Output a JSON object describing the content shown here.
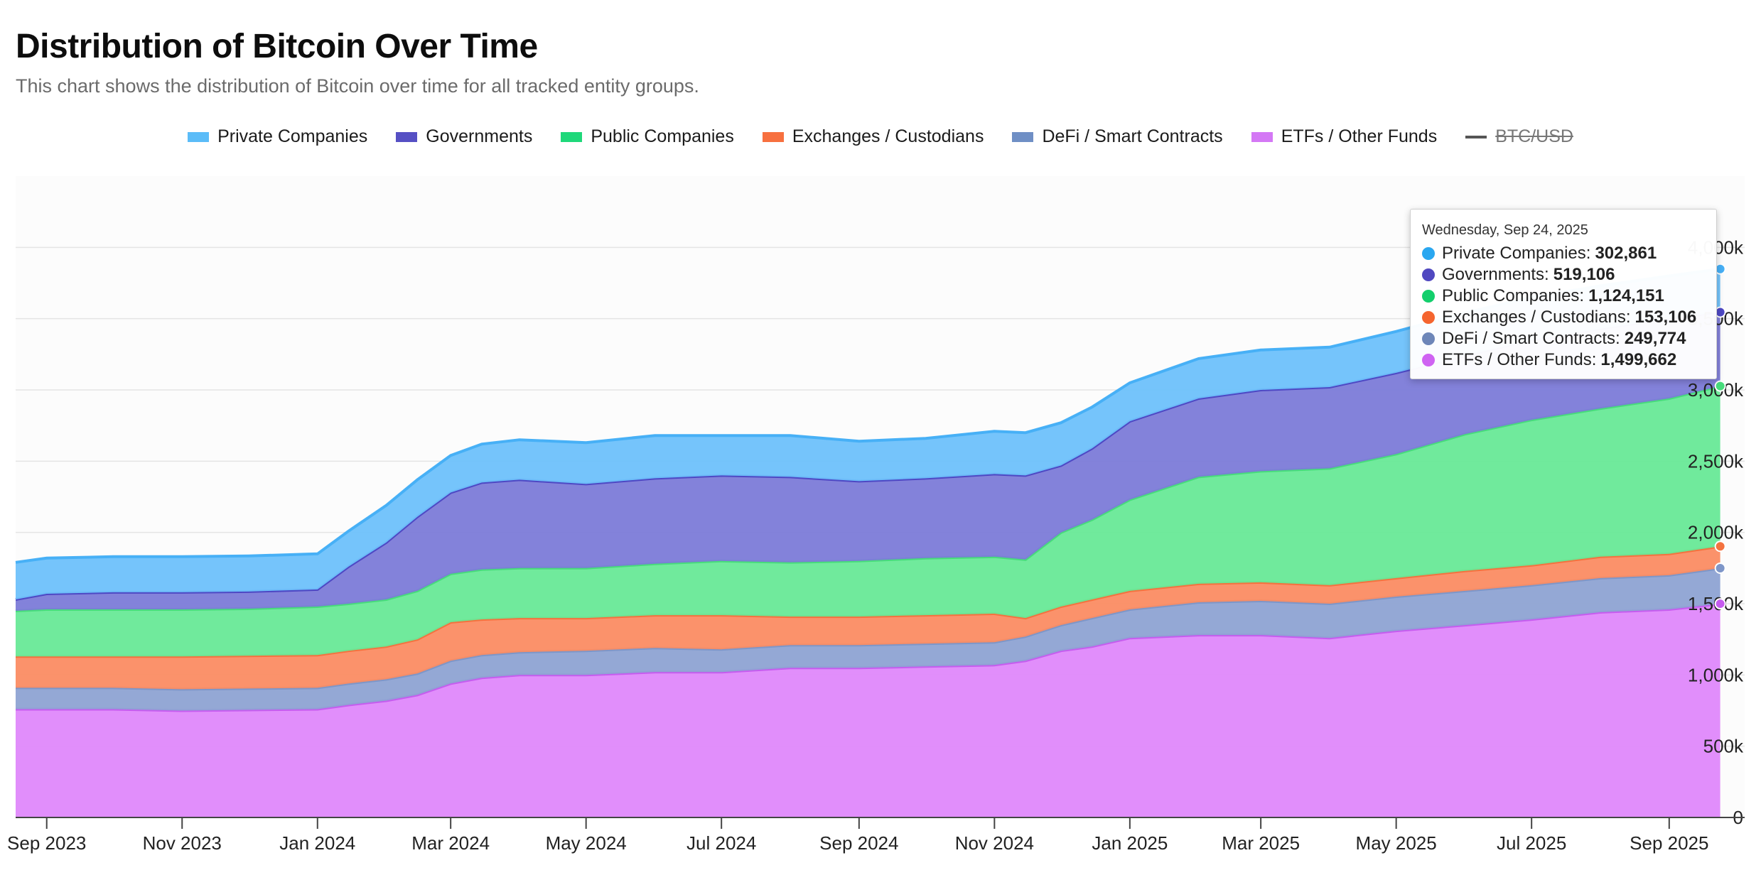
{
  "title": "Distribution of Bitcoin Over Time",
  "subtitle": "This chart shows the distribution of Bitcoin over time for all tracked entity groups.",
  "legend": [
    {
      "label": "Private Companies",
      "color": "#5bbcf8"
    },
    {
      "label": "Governments",
      "color": "#5650c4"
    },
    {
      "label": "Public Companies",
      "color": "#1fd87a"
    },
    {
      "label": "Exchanges / Custodians",
      "color": "#f7703f"
    },
    {
      "label": "DeFi / Smart Contracts",
      "color": "#6f8fc5"
    },
    {
      "label": "ETFs / Other Funds",
      "color": "#d478f5"
    },
    {
      "label": "BTC/USD",
      "color": "#555555",
      "disabled": true
    }
  ],
  "tooltip": {
    "date": "Wednesday, Sep 24, 2025",
    "rows": [
      {
        "label": "Private Companies:",
        "value": "302,861",
        "color": "#2aa7f0"
      },
      {
        "label": "Governments:",
        "value": "519,106",
        "color": "#5048c0"
      },
      {
        "label": "Public Companies:",
        "value": "1,124,151",
        "color": "#13cf6c"
      },
      {
        "label": "Exchanges / Custodians:",
        "value": "153,106",
        "color": "#f5652f"
      },
      {
        "label": "DeFi / Smart Contracts:",
        "value": "249,774",
        "color": "#6d86b8"
      },
      {
        "label": "ETFs / Other Funds:",
        "value": "1,499,662",
        "color": "#cf63f2"
      }
    ]
  },
  "chart_data": {
    "type": "area",
    "stacked": true,
    "x_start": "2023-08-18",
    "x_end": "2025-10-05",
    "ylim": [
      0,
      4500000
    ],
    "yticks": [
      0,
      500000,
      1000000,
      1500000,
      2000000,
      2500000,
      3000000,
      3500000,
      4000000
    ],
    "ytick_labels": [
      "0",
      "500k",
      "1,000k",
      "1,500k",
      "2,000k",
      "2,500k",
      "3,000k",
      "3,500k",
      "4,000k"
    ],
    "xticks": [
      "2023-09-01",
      "2023-11-01",
      "2024-01-01",
      "2024-03-01",
      "2024-05-01",
      "2024-07-01",
      "2024-09-01",
      "2024-11-01",
      "2025-01-01",
      "2025-03-01",
      "2025-05-01",
      "2025-07-01",
      "2025-09-01"
    ],
    "xtick_labels": [
      "Sep 2023",
      "Nov 2023",
      "Jan 2024",
      "Mar 2024",
      "May 2024",
      "Jul 2024",
      "Sep 2024",
      "Nov 2024",
      "Jan 2025",
      "Mar 2025",
      "May 2025",
      "Jul 2025",
      "Sep 2025"
    ],
    "dates": [
      "2023-08-18",
      "2023-09-01",
      "2023-10-01",
      "2023-11-01",
      "2023-12-01",
      "2024-01-01",
      "2024-01-15",
      "2024-02-01",
      "2024-02-15",
      "2024-03-01",
      "2024-03-15",
      "2024-04-01",
      "2024-05-01",
      "2024-06-01",
      "2024-07-01",
      "2024-08-01",
      "2024-09-01",
      "2024-10-01",
      "2024-11-01",
      "2024-11-15",
      "2024-12-01",
      "2024-12-15",
      "2025-01-01",
      "2025-02-01",
      "2025-03-01",
      "2025-04-01",
      "2025-05-01",
      "2025-06-01",
      "2025-07-01",
      "2025-08-01",
      "2025-09-01",
      "2025-09-24"
    ],
    "series": [
      {
        "name": "ETFs / Other Funds",
        "color": "#df88fb",
        "line": "#c65cef",
        "values": [
          760000,
          760000,
          760000,
          750000,
          755000,
          760000,
          790000,
          820000,
          860000,
          940000,
          980000,
          1000000,
          1000000,
          1020000,
          1020000,
          1050000,
          1050000,
          1060000,
          1070000,
          1100000,
          1170000,
          1200000,
          1260000,
          1280000,
          1280000,
          1260000,
          1310000,
          1350000,
          1390000,
          1440000,
          1460000,
          1499662
        ]
      },
      {
        "name": "DeFi / Smart Contracts",
        "color": "#8ea3d3",
        "line": "#7e96c8",
        "values": [
          150000,
          150000,
          150000,
          150000,
          150000,
          150000,
          150000,
          150000,
          150000,
          160000,
          160000,
          160000,
          170000,
          170000,
          160000,
          160000,
          160000,
          160000,
          160000,
          170000,
          180000,
          200000,
          200000,
          230000,
          240000,
          240000,
          240000,
          240000,
          240000,
          240000,
          240000,
          249774
        ]
      },
      {
        "name": "Exchanges / Custodians",
        "color": "#fb8c63",
        "line": "#f4723f",
        "values": [
          220000,
          220000,
          220000,
          230000,
          230000,
          230000,
          230000,
          230000,
          240000,
          270000,
          250000,
          240000,
          230000,
          230000,
          240000,
          200000,
          200000,
          200000,
          200000,
          130000,
          130000,
          130000,
          130000,
          130000,
          130000,
          130000,
          130000,
          140000,
          140000,
          150000,
          150000,
          153106
        ]
      },
      {
        "name": "Public Companies",
        "color": "#68e997",
        "line": "#47dc7b",
        "values": [
          320000,
          330000,
          330000,
          330000,
          330000,
          340000,
          330000,
          330000,
          340000,
          340000,
          350000,
          350000,
          350000,
          360000,
          380000,
          380000,
          390000,
          400000,
          400000,
          410000,
          520000,
          560000,
          640000,
          750000,
          780000,
          820000,
          870000,
          960000,
          1020000,
          1040000,
          1090000,
          1124151
        ]
      },
      {
        "name": "Governments",
        "color": "#7c7bd8",
        "line": "#4e48c4",
        "values": [
          80000,
          110000,
          120000,
          120000,
          120000,
          120000,
          260000,
          400000,
          520000,
          570000,
          610000,
          620000,
          590000,
          600000,
          600000,
          600000,
          560000,
          560000,
          580000,
          590000,
          470000,
          500000,
          550000,
          550000,
          570000,
          570000,
          570000,
          550000,
          560000,
          560000,
          560000,
          519106
        ]
      },
      {
        "name": "Private Companies",
        "color": "#6ec1fb",
        "line": "#47b0f6",
        "values": [
          260000,
          250000,
          250000,
          250000,
          250000,
          250000,
          250000,
          260000,
          260000,
          260000,
          270000,
          280000,
          290000,
          300000,
          280000,
          290000,
          280000,
          280000,
          300000,
          300000,
          300000,
          290000,
          270000,
          280000,
          280000,
          280000,
          290000,
          300000,
          300000,
          300000,
          300000,
          302861
        ]
      }
    ],
    "tooltip_date": "2025-09-24"
  }
}
